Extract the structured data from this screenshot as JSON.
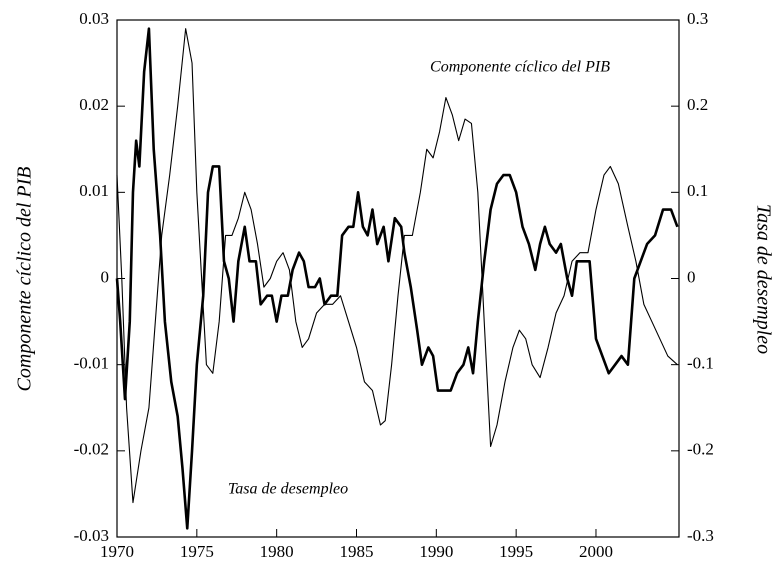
{
  "chart_data": {
    "type": "line",
    "y_label": "Componente cíclico del PIB",
    "y2_label": "Tasa de desempleo",
    "annotations": [
      "Componente cíclico del PIB",
      "Tasa de desempleo"
    ],
    "xlim": [
      1970,
      2005.2
    ],
    "xticks": [
      1970,
      1975,
      1980,
      1985,
      1990,
      1995,
      2000
    ],
    "ylim": [
      -0.03,
      0.03
    ],
    "yticks": [
      -0.03,
      -0.02,
      -0.01,
      0,
      0.01,
      0.02,
      0.03
    ],
    "y2lim": [
      -0.3,
      0.3
    ],
    "y2ticks": [
      -0.3,
      -0.2,
      -0.1,
      0,
      0.1,
      0.2,
      0.3
    ],
    "series": [
      {
        "color": "#000000",
        "axis": "y",
        "x": [
          1970.0,
          1970.2,
          1970.5,
          1970.8,
          1971.0,
          1971.2,
          1971.4,
          1971.7,
          1972.0,
          1972.3,
          1972.7,
          1973.0,
          1973.4,
          1973.8,
          1974.1,
          1974.4,
          1974.7,
          1975.0,
          1975.4,
          1975.7,
          1976.0,
          1976.4,
          1976.7,
          1977.0,
          1977.3,
          1977.6,
          1978.0,
          1978.3,
          1978.7,
          1979.0,
          1979.4,
          1979.7,
          1980.0,
          1980.3,
          1980.7,
          1981.0,
          1981.4,
          1981.7,
          1982.0,
          1982.4,
          1982.7,
          1983.0,
          1983.4,
          1983.8,
          1984.1,
          1984.5,
          1984.8,
          1985.1,
          1985.4,
          1985.7,
          1986.0,
          1986.3,
          1986.7,
          1987.0,
          1987.4,
          1987.8,
          1988.0,
          1988.4,
          1988.8,
          1989.1,
          1989.5,
          1989.8,
          1990.1,
          1990.5,
          1990.9,
          1991.3,
          1991.7,
          1992.0,
          1992.3,
          1992.6,
          1993.0,
          1993.4,
          1993.8,
          1994.2,
          1994.6,
          1995.0,
          1995.4,
          1995.8,
          1996.2,
          1996.5,
          1996.8,
          1997.1,
          1997.5,
          1997.8,
          1998.2,
          1998.5,
          1998.8,
          1999.2,
          1999.6,
          2000.0,
          2000.4,
          2000.8,
          2001.2,
          2001.6,
          2002.0,
          2002.4,
          2002.8,
          2003.2,
          2003.7,
          2004.2,
          2004.7,
          2005.1
        ],
        "values": [
          0.0,
          -0.005,
          -0.014,
          -0.005,
          0.01,
          0.016,
          0.013,
          0.024,
          0.029,
          0.015,
          0.005,
          -0.005,
          -0.012,
          -0.016,
          -0.022,
          -0.029,
          -0.02,
          -0.01,
          -0.002,
          0.01,
          0.013,
          0.013,
          0.002,
          0.0,
          -0.005,
          0.002,
          0.006,
          0.002,
          0.002,
          -0.003,
          -0.002,
          -0.002,
          -0.005,
          -0.002,
          -0.002,
          0.001,
          0.003,
          0.002,
          -0.001,
          -0.001,
          0.0,
          -0.003,
          -0.002,
          -0.002,
          0.005,
          0.006,
          0.006,
          0.01,
          0.006,
          0.005,
          0.008,
          0.004,
          0.006,
          0.002,
          0.007,
          0.006,
          0.003,
          -0.001,
          -0.006,
          -0.01,
          -0.008,
          -0.009,
          -0.013,
          -0.013,
          -0.013,
          -0.011,
          -0.01,
          -0.008,
          -0.011,
          -0.005,
          0.002,
          0.008,
          0.011,
          0.012,
          0.012,
          0.01,
          0.006,
          0.004,
          0.001,
          0.004,
          0.006,
          0.004,
          0.003,
          0.004,
          0.0,
          -0.002,
          0.002,
          0.002,
          0.002,
          -0.007,
          -0.009,
          -0.011,
          -0.01,
          -0.009,
          -0.01,
          0.0,
          0.002,
          0.004,
          0.005,
          0.008,
          0.008,
          0.006
        ]
      },
      {
        "color": "#000000",
        "axis": "y2",
        "x": [
          1970.0,
          1970.3,
          1970.6,
          1971.0,
          1971.5,
          1972.0,
          1972.4,
          1972.8,
          1973.3,
          1973.8,
          1974.3,
          1974.7,
          1975.0,
          1975.3,
          1975.6,
          1976.0,
          1976.4,
          1976.8,
          1977.2,
          1977.6,
          1978.0,
          1978.4,
          1978.8,
          1979.2,
          1979.6,
          1980.0,
          1980.4,
          1980.8,
          1981.2,
          1981.6,
          1982.0,
          1982.5,
          1983.0,
          1983.5,
          1984.0,
          1984.5,
          1985.0,
          1985.5,
          1986.0,
          1986.5,
          1986.8,
          1987.2,
          1987.6,
          1988.0,
          1988.5,
          1989.0,
          1989.4,
          1989.8,
          1990.2,
          1990.6,
          1991.0,
          1991.4,
          1991.8,
          1992.2,
          1992.6,
          1993.0,
          1993.4,
          1993.8,
          1994.3,
          1994.8,
          1995.2,
          1995.6,
          1996.0,
          1996.5,
          1997.0,
          1997.5,
          1998.0,
          1998.5,
          1999.0,
          1999.5,
          2000.0,
          2000.5,
          2000.9,
          2001.4,
          2002.0,
          2002.5,
          2003.0,
          2003.5,
          2004.0,
          2004.5,
          2005.1
        ],
        "values": [
          0.12,
          0.0,
          -0.15,
          -0.26,
          -0.2,
          -0.15,
          -0.05,
          0.05,
          0.12,
          0.2,
          0.29,
          0.25,
          0.1,
          0.0,
          -0.1,
          -0.11,
          -0.05,
          0.05,
          0.05,
          0.07,
          0.1,
          0.08,
          0.04,
          -0.01,
          0.0,
          0.02,
          0.03,
          0.01,
          -0.05,
          -0.08,
          -0.07,
          -0.04,
          -0.03,
          -0.03,
          -0.02,
          -0.05,
          -0.08,
          -0.12,
          -0.13,
          -0.17,
          -0.165,
          -0.1,
          -0.02,
          0.05,
          0.05,
          0.1,
          0.15,
          0.14,
          0.17,
          0.21,
          0.19,
          0.16,
          0.185,
          0.18,
          0.1,
          -0.05,
          -0.195,
          -0.17,
          -0.12,
          -0.08,
          -0.06,
          -0.07,
          -0.1,
          -0.115,
          -0.08,
          -0.04,
          -0.02,
          0.02,
          0.03,
          0.03,
          0.08,
          0.12,
          0.13,
          0.11,
          0.06,
          0.02,
          -0.03,
          -0.05,
          -0.07,
          -0.09,
          -0.1
        ]
      }
    ]
  }
}
